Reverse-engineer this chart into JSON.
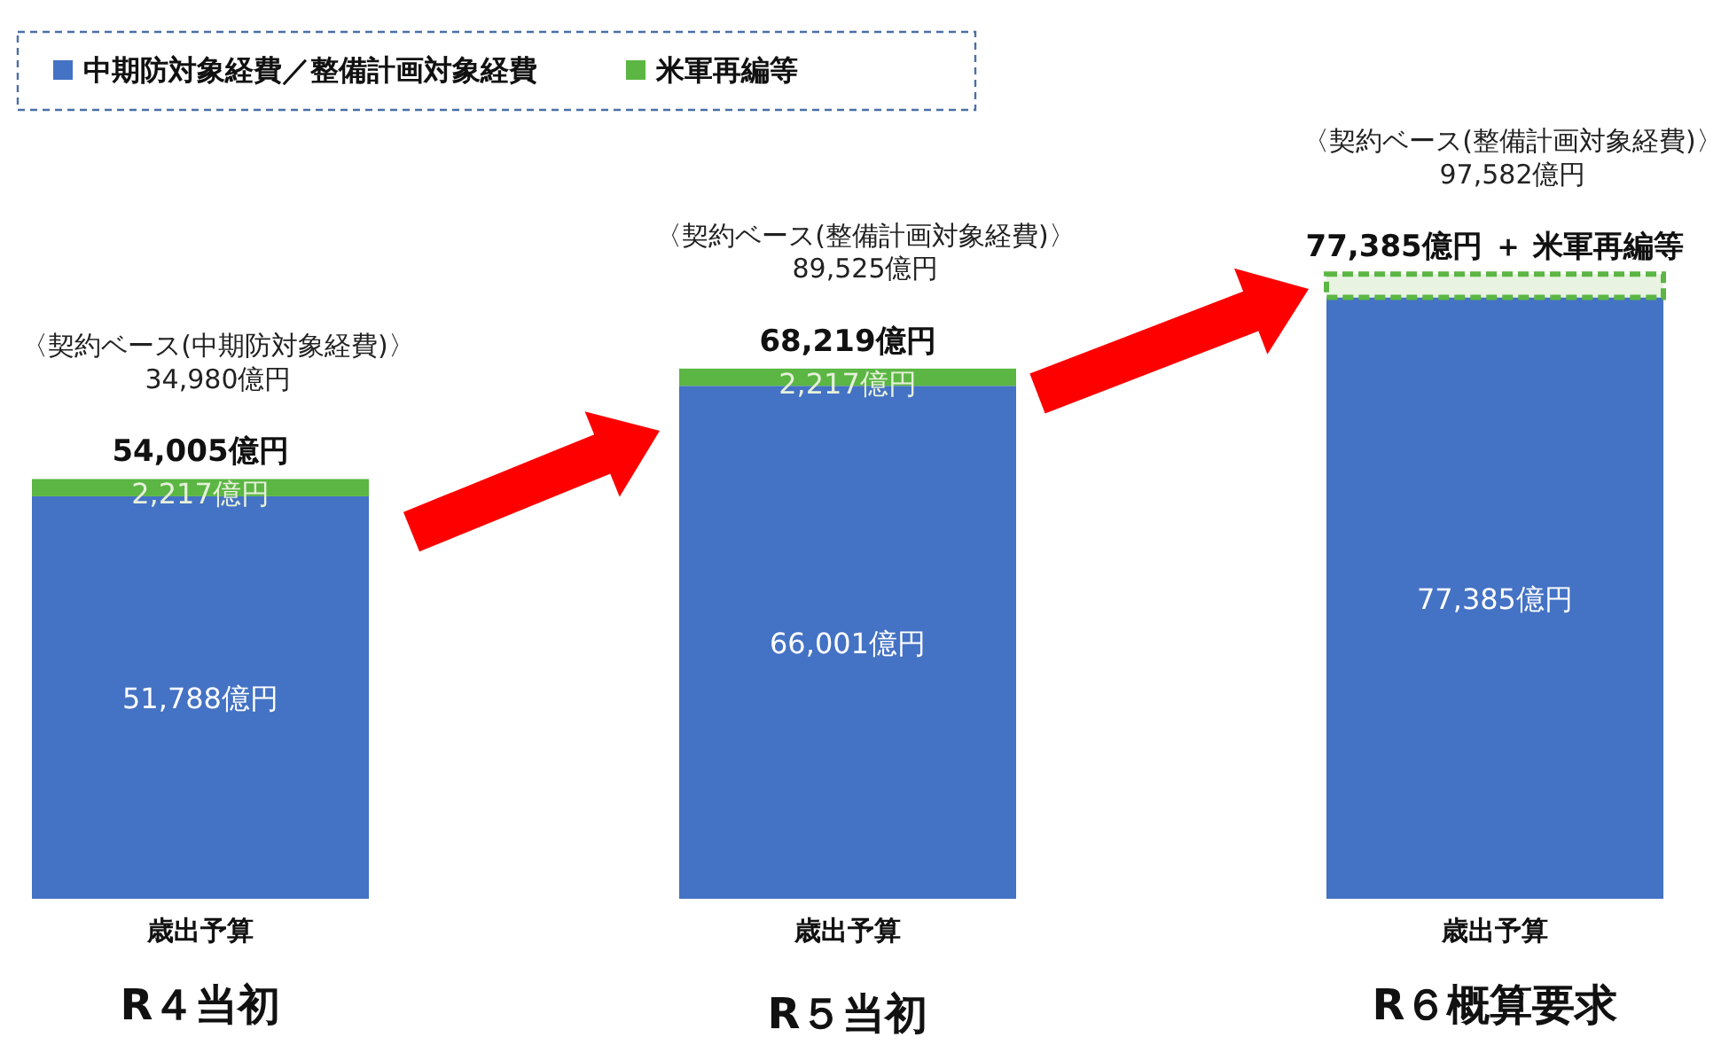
{
  "chart_data": {
    "type": "bar",
    "stacked": true,
    "categories": [
      "R４当初",
      "R５当初",
      "R６概算要求"
    ],
    "series": [
      {
        "name": "中期防対象経費／整備計画対象経費",
        "color": "#4472c4",
        "values": [
          51788,
          66001,
          77385
        ],
        "value_labels": [
          "51,788億円",
          "66,001億円",
          "77,385億円"
        ]
      },
      {
        "name": "米軍再編等",
        "color": "#5bb643",
        "colors": [
          "#5bb643",
          "#5bb643",
          "#e8f3e2"
        ],
        "values": [
          2217,
          2217,
          3000
        ],
        "value_labels": [
          "2,217億円",
          "2,217億円",
          null
        ]
      }
    ],
    "totals": [
      "54,005億円",
      "68,219億円",
      null
    ],
    "legend": "top left",
    "annotations": [
      "〈契約ベース(中期防対象経費)〉\n34,980億円",
      "〈契約ベース(整備計画対象経費)〉\n89,525億円",
      "〈契約ベース(整備計画対象経費)〉\n97,582億円",
      "77,385億円 ＋ 米軍再編等",
      "歳出予算",
      "歳出予算",
      "歳出予算"
    ]
  }
}
